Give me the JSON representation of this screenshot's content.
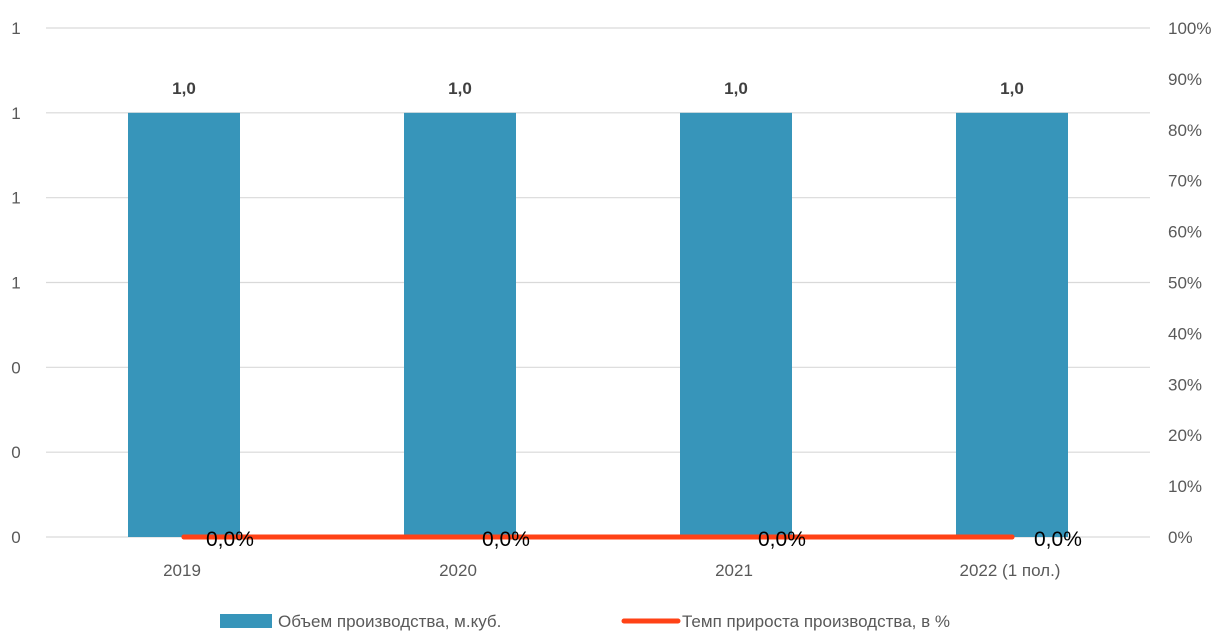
{
  "chart_data": {
    "type": "bar",
    "categories": [
      "2019",
      "2020",
      "2021",
      "2022 (1 пол.)"
    ],
    "series": [
      {
        "name": "Объем производства, м.куб.",
        "type": "bar",
        "axis": "left",
        "values": [
          1.0,
          1.0,
          1.0,
          1.0
        ],
        "labels": [
          "1,0",
          "1,0",
          "1,0",
          "1,0"
        ],
        "color": "#3795BA"
      },
      {
        "name": "Темп прироста производства, в %",
        "type": "line",
        "axis": "right",
        "values": [
          0,
          0,
          0,
          0
        ],
        "labels": [
          "0,0%",
          "0,0%",
          "0,0%",
          "0,0%"
        ],
        "color": "#FF4216"
      }
    ],
    "y_left": {
      "ylim": [
        0,
        1.2
      ],
      "ticks": [
        0,
        0.2,
        0.4,
        0.6,
        0.8,
        1.0,
        1.2
      ],
      "tick_labels": [
        "0",
        "0",
        "0",
        "1",
        "1",
        "1",
        "1"
      ]
    },
    "y_right": {
      "ylim": [
        0,
        100
      ],
      "ticks": [
        0,
        10,
        20,
        30,
        40,
        50,
        60,
        70,
        80,
        90,
        100
      ],
      "tick_labels": [
        "0%",
        "10%",
        "20%",
        "30%",
        "40%",
        "50%",
        "60%",
        "70%",
        "80%",
        "90%",
        "100%"
      ]
    },
    "grid": true,
    "legend": "bottom",
    "gridColor": "#d9d9d9"
  }
}
